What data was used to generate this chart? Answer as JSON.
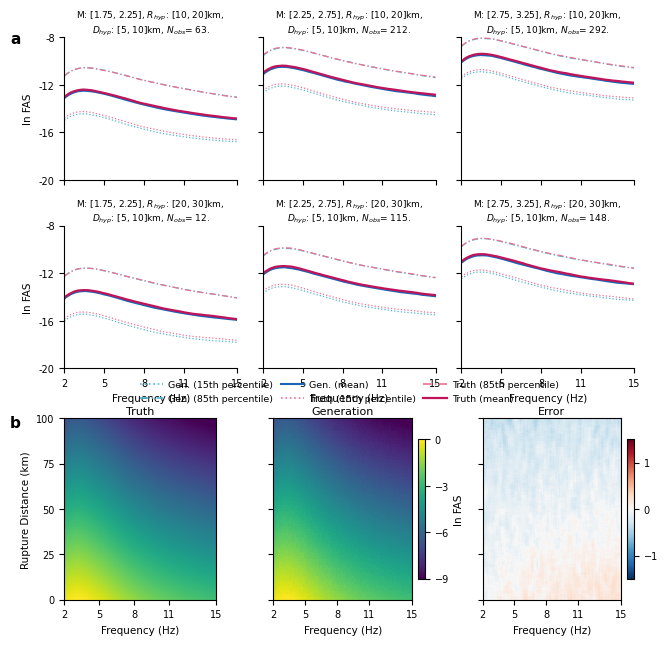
{
  "panel_a_titles": [
    "M: [1.75, 2.25], $R_{hyp}$: [10, 20]km,\n$D_{hyp}$: [5, 10]km, $N_{obs}$= 63.",
    "M: [2.25, 2.75], $R_{hyp}$: [10, 20]km,\n$D_{hyp}$: [5, 10]km, $N_{obs}$= 212.",
    "M: [2.75, 3.25], $R_{hyp}$: [10, 20]km,\n$D_{hyp}$: [5, 10]km, $N_{obs}$= 292.",
    "M: [1.75, 2.25], $R_{hyp}$: [20, 30]km,\n$D_{hyp}$: [5, 10]km, $N_{obs}$= 12.",
    "M: [2.25, 2.75], $R_{hyp}$: [20, 30]km,\n$D_{hyp}$: [5, 10]km, $N_{obs}$= 115.",
    "M: [2.75, 3.25], $R_{hyp}$: [20, 30]km,\n$D_{hyp}$: [5, 10]km, $N_{obs}$= 148."
  ],
  "freq_ticks": [
    2,
    5,
    8,
    11,
    15
  ],
  "ylim_a": [
    -20,
    -8
  ],
  "yticks_a": [
    -20,
    -16,
    -12,
    -8
  ],
  "ylabel_a": "ln FAS",
  "xlabel_a": "Frequency (Hz)",
  "gen_color": "#4db8d4",
  "truth_color": "#f07090",
  "gen_color_dark": "#1a66b3",
  "truth_color_dark": "#c0145a",
  "panel_b_titles": [
    "Truth",
    "Generation",
    "Error"
  ],
  "ylabel_b": "Rupture Distance (km)",
  "xlabel_b": "Frequency (Hz)",
  "colorbar_label_b": "ln FAS",
  "ylim_b": [
    0,
    100
  ],
  "yticks_b": [
    0,
    25,
    50,
    75,
    100
  ],
  "cmap_truth": "viridis",
  "cmap_error": "RdBu_r",
  "vmin_b": -9,
  "vmax_b": 0,
  "vmin_err": -1.5,
  "vmax_err": 1.5,
  "panel_configs": [
    {
      "M": [
        1.75,
        2.25
      ],
      "R": [
        10,
        20
      ],
      "mean_level": -12.5,
      "spread": 1.8
    },
    {
      "M": [
        2.25,
        2.75
      ],
      "R": [
        10,
        20
      ],
      "mean_level": -10.5,
      "spread": 1.5
    },
    {
      "M": [
        2.75,
        3.25
      ],
      "R": [
        10,
        20
      ],
      "mean_level": -9.5,
      "spread": 1.3
    },
    {
      "M": [
        1.75,
        2.25
      ],
      "R": [
        20,
        30
      ],
      "mean_level": -13.5,
      "spread": 1.8
    },
    {
      "M": [
        2.25,
        2.75
      ],
      "R": [
        20,
        30
      ],
      "mean_level": -11.5,
      "spread": 1.5
    },
    {
      "M": [
        2.75,
        3.25
      ],
      "R": [
        20,
        30
      ],
      "mean_level": -10.5,
      "spread": 1.3
    }
  ]
}
